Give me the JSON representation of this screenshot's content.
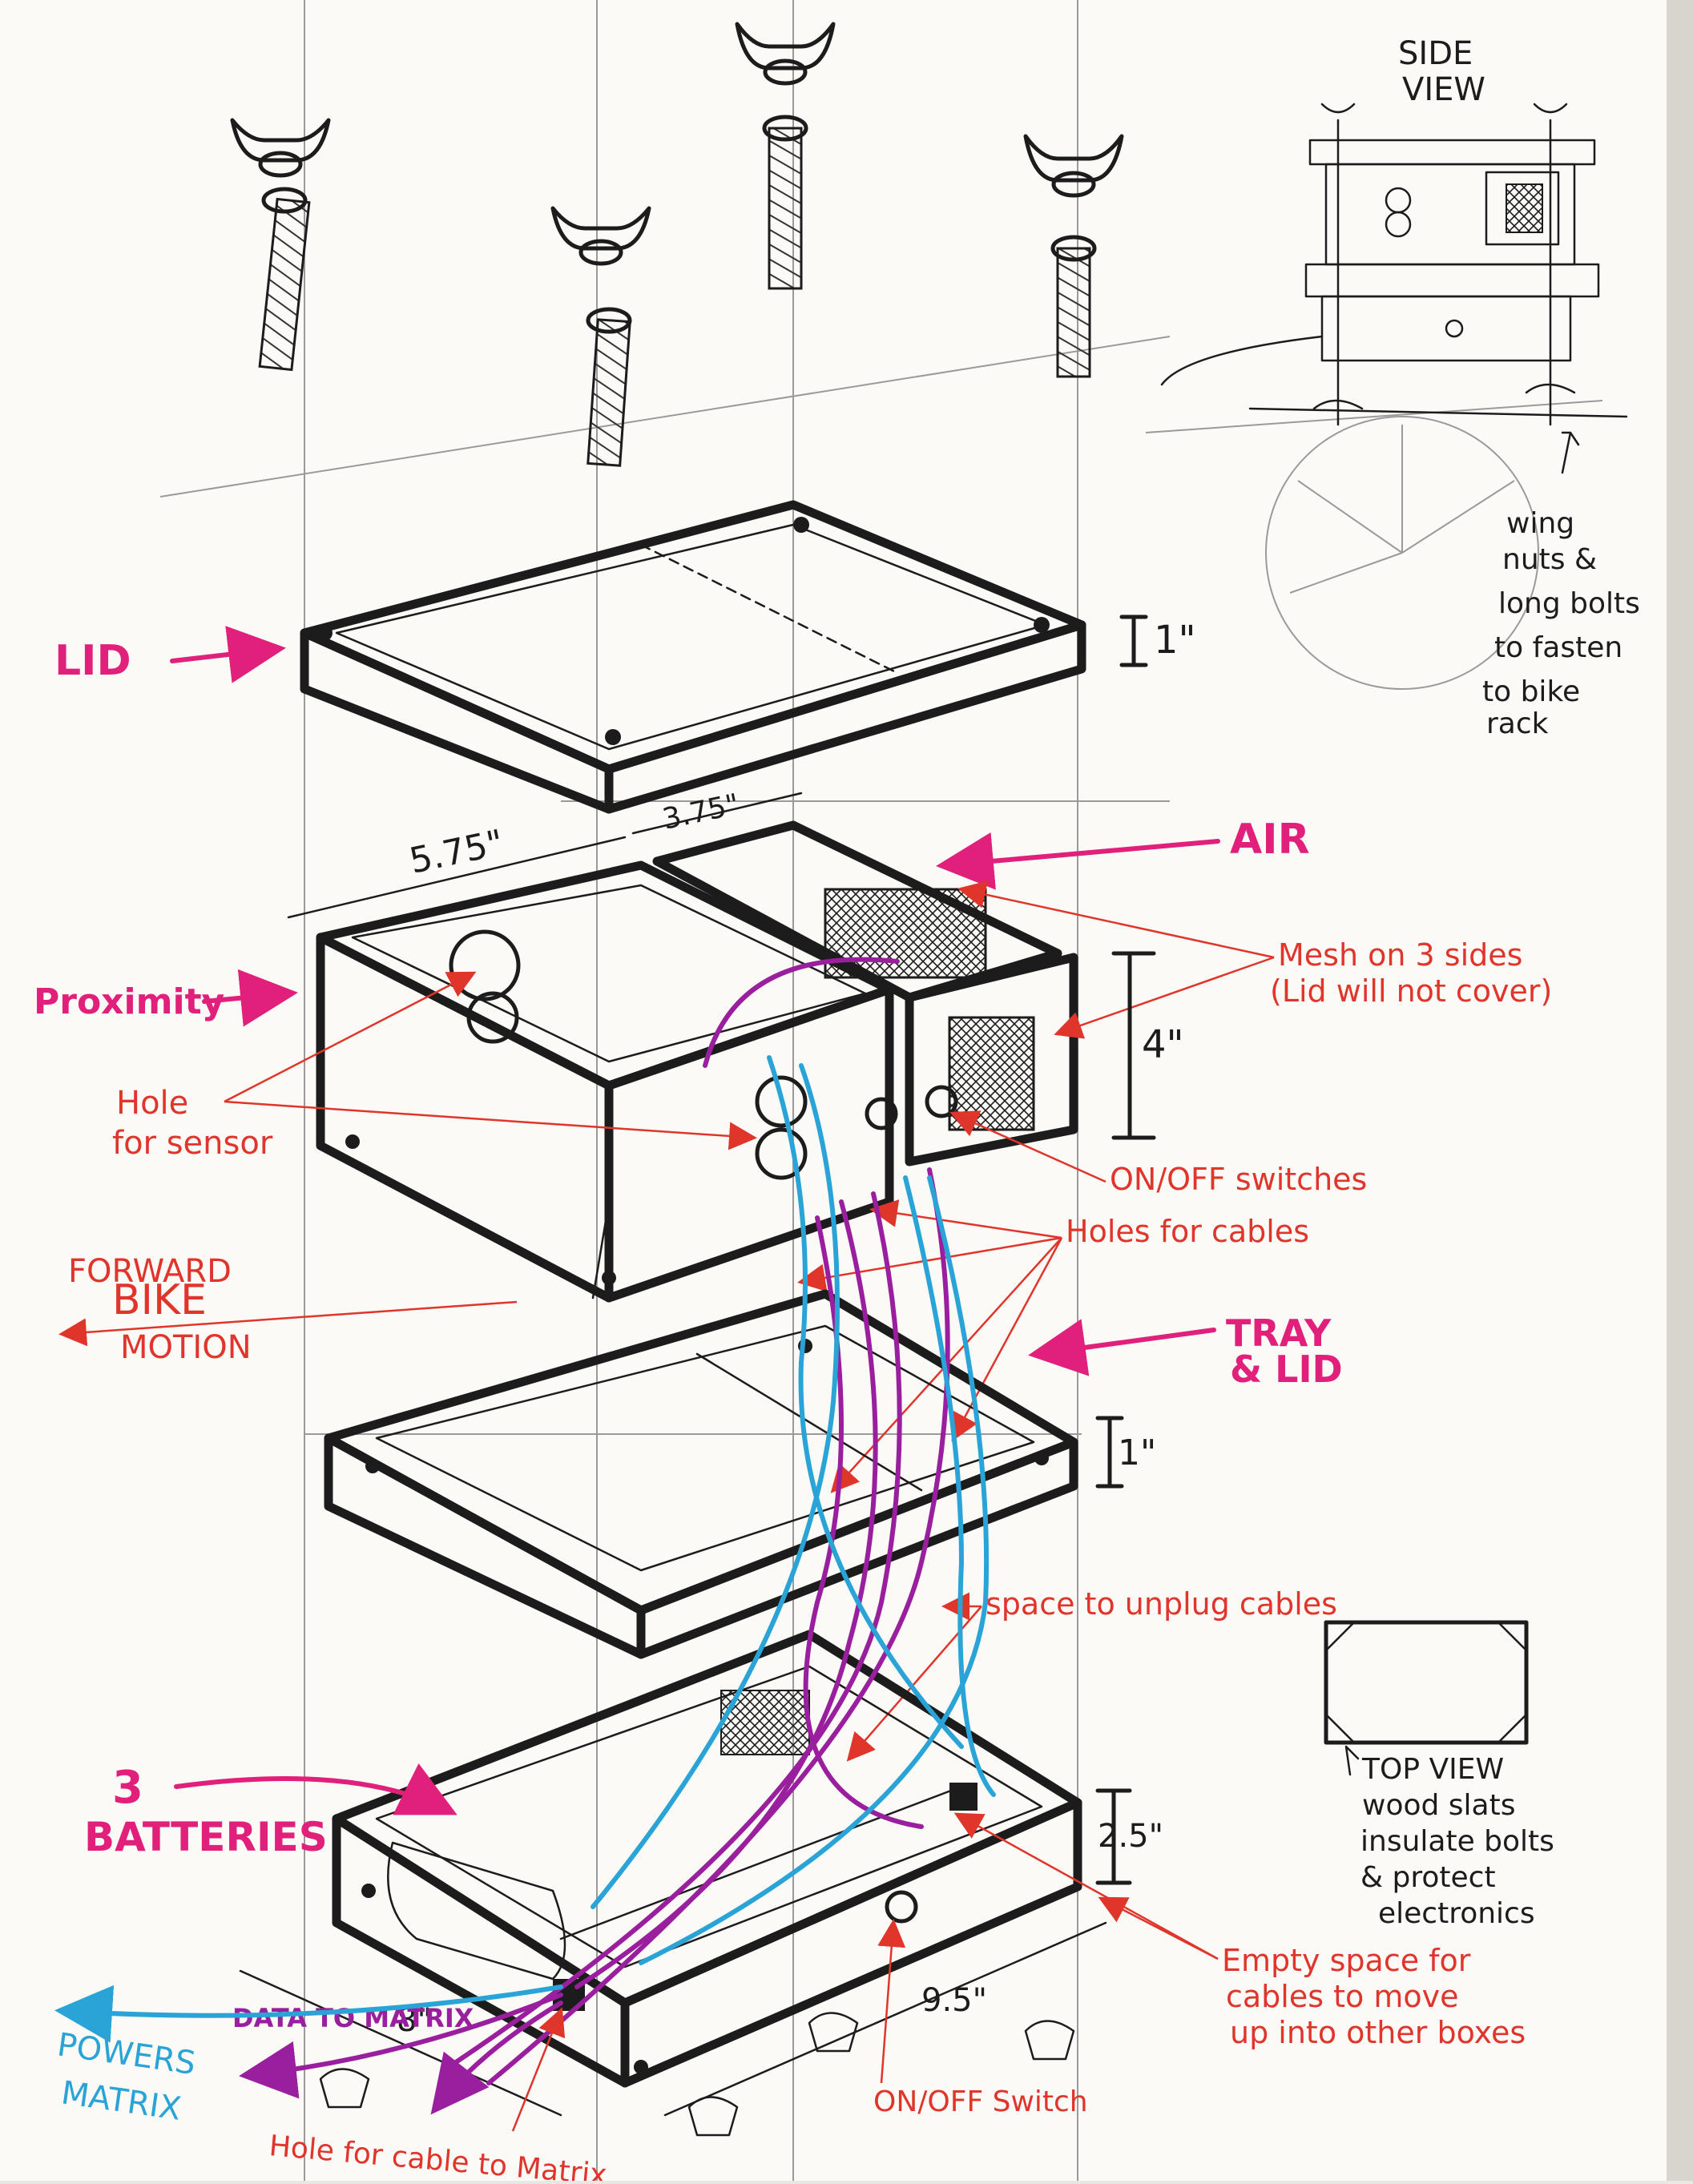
{
  "side_view": {
    "title_line1": "SIDE",
    "title_line2": "VIEW"
  },
  "side_note": {
    "line1": "wing",
    "line2": "nuts &",
    "line3": "long bolts",
    "line4": "to fasten",
    "line5": "to bike",
    "line6": "rack"
  },
  "labels": {
    "lid": "LID",
    "lid_height": "1\"",
    "width_575": "5.75\"",
    "width_375": "3.75\"",
    "air": "AIR",
    "mesh_line1": "Mesh on 3 sides",
    "mesh_line2": "(Lid will not cover)",
    "proximity": "Proximity",
    "box_height": "4\"",
    "hole_line1": "Hole",
    "hole_line2": "for sensor",
    "switches": "ON/OFF switches",
    "cable_holes": "Holes for cables",
    "forward": "FORWARD",
    "bike": "BIKE",
    "motion": "MOTION",
    "tray_line1": "TRAY",
    "tray_line2": "& LID",
    "tray_height": "1\"",
    "unplug": "space to unplug cables",
    "batteries_line1": "3",
    "batteries_line2": "BATTERIES",
    "battery_height": "2.5\"",
    "top_view": "TOP VIEW",
    "wood_line1": "wood slats",
    "wood_line2": "insulate bolts",
    "wood_line3": "& protect",
    "wood_line4": "electronics",
    "empty_line1": "Empty space for",
    "empty_line2": "cables to move",
    "empty_line3": "up into other boxes",
    "data": "DATA TO MATRIX",
    "depth_8": "8\"",
    "length_95": "9.5\"",
    "powers_line1": "POWERS",
    "powers_line2": "MATRIX",
    "hole_cable": "Hole for cable to Matrix",
    "switch": "ON/OFF Switch"
  },
  "colors": {
    "ink": "#1c1c1c",
    "pink_marker": "#e0207a",
    "red_pen": "#e0352b",
    "purple_cable": "#9a1f9e",
    "blue_cable": "#2aa3d6",
    "paper": "#fbfaf7"
  }
}
